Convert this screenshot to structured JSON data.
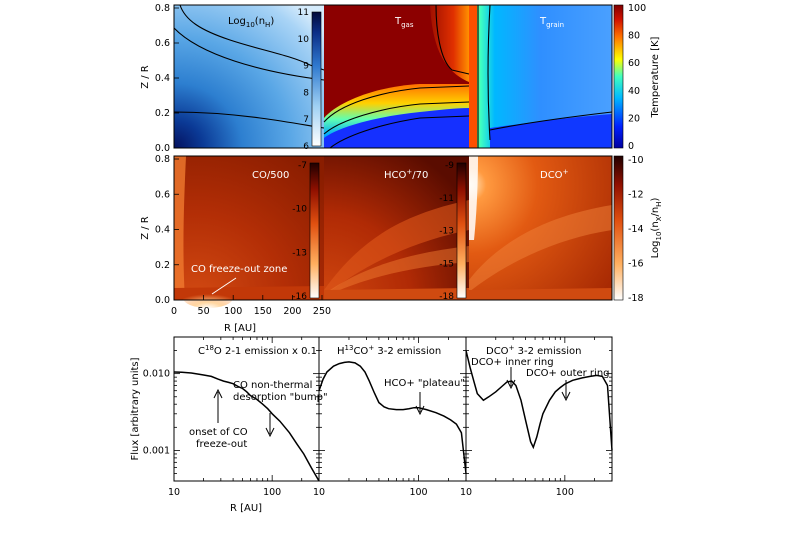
{
  "chart_data": [
    {
      "type": "heatmap",
      "row": "top",
      "ylabel": "Z / R",
      "ylim": [
        0,
        0.8
      ],
      "yticks": [
        "0.0",
        "0.2",
        "0.4",
        "0.6",
        "0.8"
      ],
      "panels": [
        {
          "title_main": "Log",
          "title_sub": "10",
          "title_tail": "(n",
          "title_sub2": "H",
          "title_end": ")",
          "colorbar_ticks": [
            "6",
            "7",
            "8",
            "9",
            "10",
            "11"
          ],
          "colormap": "blue"
        },
        {
          "title_main": "T",
          "title_sub": "gas",
          "colormap": "jet"
        },
        {
          "title_main": "T",
          "title_sub": "grain",
          "colormap": "jet"
        }
      ],
      "colorbar": {
        "label": "Temperature [K]",
        "ticks": [
          "0",
          "20",
          "40",
          "60",
          "80",
          "100"
        ]
      }
    },
    {
      "type": "heatmap",
      "row": "middle",
      "ylabel": "Z / R",
      "ylim": [
        0,
        0.8
      ],
      "yticks": [
        "0.0",
        "0.2",
        "0.4",
        "0.6",
        "0.8"
      ],
      "xlabel": "R [AU]",
      "xticks": [
        "0",
        "50",
        "100",
        "150",
        "200",
        "250"
      ],
      "panels": [
        {
          "title": "CO/500",
          "colorbar_ticks": [
            "-16",
            "-13",
            "-10",
            "-7"
          ],
          "annotation": "CO freeze-out zone"
        },
        {
          "title": "HCO",
          "title_sup": "+",
          "title_tail": "/70",
          "colorbar_ticks": [
            "-18",
            "-15",
            "-13",
            "-11",
            "-9"
          ]
        },
        {
          "title": "DCO",
          "title_sup": "+"
        }
      ],
      "colorbar": {
        "label_main": "Log",
        "label_sub": "10",
        "label_tail": "(n",
        "label_sub2": "X",
        "label_tail2": "/n",
        "label_sub3": "H",
        "label_end": ")",
        "ticks": [
          "-18",
          "-16",
          "-14",
          "-12",
          "-10"
        ]
      }
    },
    {
      "type": "line",
      "row": "bottom",
      "ylabel": "Flux [arbitrary units]",
      "xlabel": "R [AU]",
      "xscale": "log",
      "yscale": "log",
      "xlim": [
        10,
        300
      ],
      "ylim": [
        0.0004,
        0.03
      ],
      "yticks": [
        {
          "v": 0.01,
          "t": "0.010"
        },
        {
          "v": 0.001,
          "t": "0.001"
        }
      ],
      "xticks": [
        {
          "v": 10,
          "t": "10"
        },
        {
          "v": 100,
          "t": "100"
        }
      ],
      "panels": [
        {
          "title_pre": "C",
          "title_sup": "18",
          "title_tail": "O 2-1 emission x 0.1",
          "x": [
            10,
            12,
            15,
            18,
            20,
            24,
            28,
            32,
            36,
            40,
            45,
            50,
            55,
            60,
            70,
            80,
            90,
            100,
            120,
            150,
            180,
            210,
            250,
            300
          ],
          "y": [
            0.0105,
            0.0104,
            0.0102,
            0.0098,
            0.0096,
            0.0092,
            0.0085,
            0.008,
            0.0077,
            0.0074,
            0.0068,
            0.0064,
            0.0058,
            0.0052,
            0.0046,
            0.004,
            0.0035,
            0.003,
            0.0024,
            0.0017,
            0.0012,
            0.0009,
            0.0006,
            0.0004
          ],
          "annotations": [
            {
              "text": [
                "onset of CO",
                "freeze-out"
              ]
            },
            {
              "text": [
                "CO non-thermal",
                "desorption \"bump\""
              ]
            }
          ]
        },
        {
          "title_pre": "H",
          "title_sup": "13",
          "title_tail": "CO",
          "title_sup2": "+",
          "title_end": " 3-2 emission",
          "x": [
            10,
            11,
            12,
            14,
            16,
            18,
            20,
            23,
            26,
            29,
            32,
            36,
            40,
            45,
            50,
            60,
            70,
            80,
            90,
            100,
            120,
            150,
            180,
            210,
            240,
            270,
            300
          ],
          "y": [
            0.006,
            0.0085,
            0.0105,
            0.0125,
            0.0135,
            0.014,
            0.0142,
            0.0138,
            0.0125,
            0.0105,
            0.008,
            0.0056,
            0.0042,
            0.0037,
            0.0035,
            0.0034,
            0.0034,
            0.0035,
            0.0036,
            0.0036,
            0.0034,
            0.0031,
            0.0028,
            0.0025,
            0.0022,
            0.0017,
            0.0005
          ],
          "annotations": [
            {
              "text": [
                "HCO+ \"plateau\""
              ]
            }
          ]
        },
        {
          "title_pre": "DCO",
          "title_sup": "+",
          "title_tail": " 3-2 emission",
          "x": [
            10,
            11,
            12,
            13,
            15,
            17,
            20,
            23,
            26,
            29,
            32,
            36,
            40,
            45,
            48,
            52,
            56,
            60,
            70,
            80,
            90,
            100,
            120,
            150,
            180,
            210,
            240,
            270,
            300
          ],
          "y": [
            0.02,
            0.012,
            0.008,
            0.0055,
            0.0045,
            0.005,
            0.0058,
            0.0068,
            0.0078,
            0.008,
            0.007,
            0.0045,
            0.0025,
            0.0013,
            0.0011,
            0.0015,
            0.0022,
            0.003,
            0.0045,
            0.0058,
            0.0066,
            0.0073,
            0.0082,
            0.0088,
            0.0092,
            0.0095,
            0.0092,
            0.007,
            0.001
          ],
          "annotations": [
            {
              "text": [
                "DCO+ inner ring"
              ]
            },
            {
              "text": [
                "DCO+ outer ring"
              ]
            }
          ]
        }
      ]
    }
  ]
}
